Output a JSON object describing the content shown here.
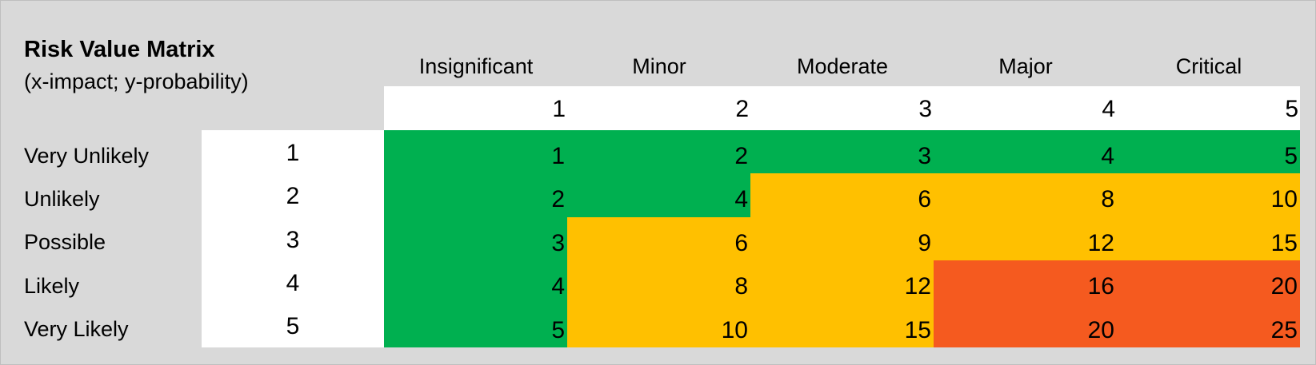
{
  "header": {
    "title": "Risk Value Matrix",
    "subtitle": "(x-impact; y-probability)"
  },
  "impact": {
    "labels": [
      "Insignificant",
      "Minor",
      "Moderate",
      "Major",
      "Critical"
    ],
    "values": [
      "1",
      "2",
      "3",
      "4",
      "5"
    ]
  },
  "probability": {
    "labels": [
      "Very Unlikely",
      "Unlikely",
      "Possible",
      "Likely",
      "Very Likely"
    ],
    "values": [
      "1",
      "2",
      "3",
      "4",
      "5"
    ]
  },
  "matrix": {
    "rows": [
      [
        {
          "value": "1",
          "level": "low"
        },
        {
          "value": "2",
          "level": "low"
        },
        {
          "value": "3",
          "level": "low"
        },
        {
          "value": "4",
          "level": "low"
        },
        {
          "value": "5",
          "level": "low"
        }
      ],
      [
        {
          "value": "2",
          "level": "low"
        },
        {
          "value": "4",
          "level": "low"
        },
        {
          "value": "6",
          "level": "medium"
        },
        {
          "value": "8",
          "level": "medium"
        },
        {
          "value": "10",
          "level": "medium"
        }
      ],
      [
        {
          "value": "3",
          "level": "low"
        },
        {
          "value": "6",
          "level": "medium"
        },
        {
          "value": "9",
          "level": "medium"
        },
        {
          "value": "12",
          "level": "medium"
        },
        {
          "value": "15",
          "level": "medium"
        }
      ],
      [
        {
          "value": "4",
          "level": "low"
        },
        {
          "value": "8",
          "level": "medium"
        },
        {
          "value": "12",
          "level": "medium"
        },
        {
          "value": "16",
          "level": "high"
        },
        {
          "value": "20",
          "level": "high"
        }
      ],
      [
        {
          "value": "5",
          "level": "low"
        },
        {
          "value": "10",
          "level": "medium"
        },
        {
          "value": "15",
          "level": "medium"
        },
        {
          "value": "20",
          "level": "high"
        },
        {
          "value": "25",
          "level": "high"
        }
      ]
    ]
  },
  "colors": {
    "low": "#00b050",
    "medium": "#ffc000",
    "high": "#f55a1f",
    "background": "#d9d9d9",
    "header_band": "#ffffff"
  }
}
